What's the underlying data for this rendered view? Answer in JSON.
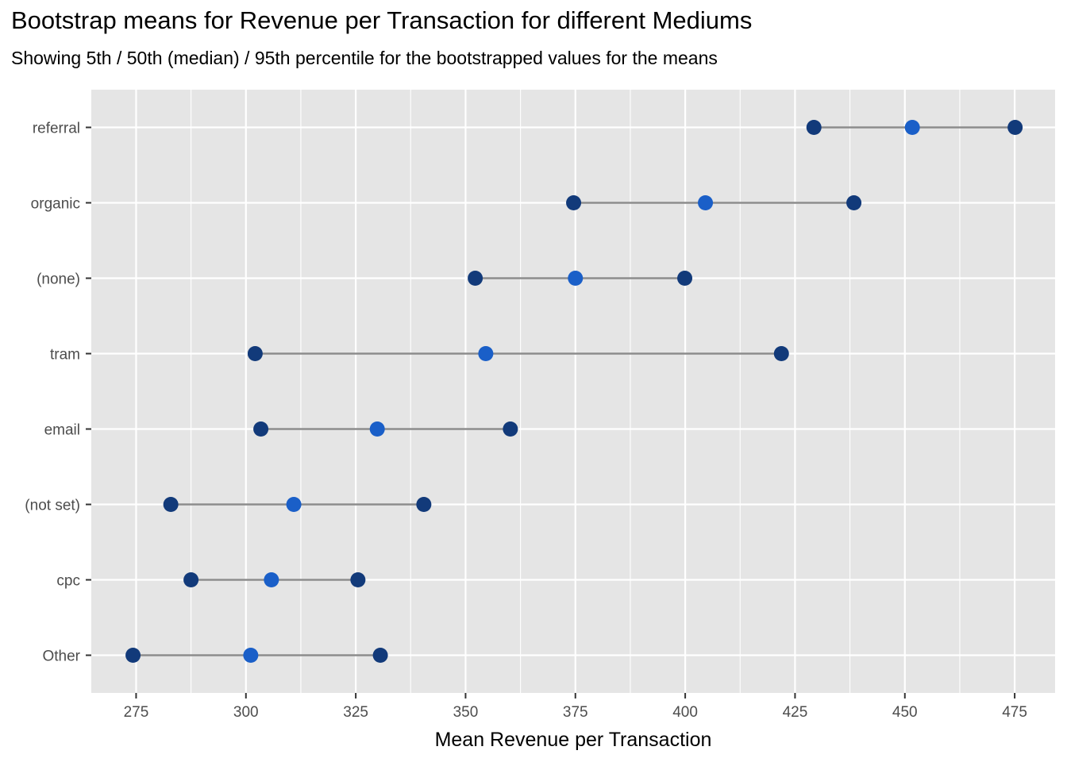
{
  "header": {
    "title": "Bootstrap means for Revenue per Transaction for different Mediums",
    "subtitle": "Showing 5th / 50th (median) / 95th percentile for the bootstrapped values for the means"
  },
  "chart_data": {
    "type": "dot-range",
    "title": "Bootstrap means for Revenue per Transaction for different Mediums",
    "subtitle": "Showing 5th / 50th (median) / 95th percentile for the bootstrapped values for the means",
    "xlabel": "Mean Revenue per Transaction",
    "ylabel": "",
    "xlim": [
      264.8,
      484.2
    ],
    "xticks": [
      275,
      300,
      325,
      350,
      375,
      400,
      425,
      450,
      475
    ],
    "grid": true,
    "legend": "none",
    "colors": {
      "panel": "#e5e5e5",
      "grid": "#ffffff",
      "range_line": "#8c8c8c",
      "percentile_point": "#123a7a",
      "median_point": "#1a5fc8"
    },
    "categories": [
      "referral",
      "organic",
      "(none)",
      "tram",
      "email",
      "(not set)",
      "cpc",
      "Other"
    ],
    "series": [
      {
        "name": "5th percentile",
        "values": [
          429.3,
          374.6,
          352.2,
          302.1,
          303.4,
          282.9,
          287.5,
          274.3
        ]
      },
      {
        "name": "50th (median)",
        "values": [
          451.7,
          404.6,
          375.0,
          354.6,
          329.9,
          310.9,
          305.8,
          301.1
        ]
      },
      {
        "name": "95th percentile",
        "values": [
          475.1,
          438.4,
          399.9,
          421.9,
          360.2,
          340.5,
          325.5,
          330.6
        ]
      }
    ]
  }
}
